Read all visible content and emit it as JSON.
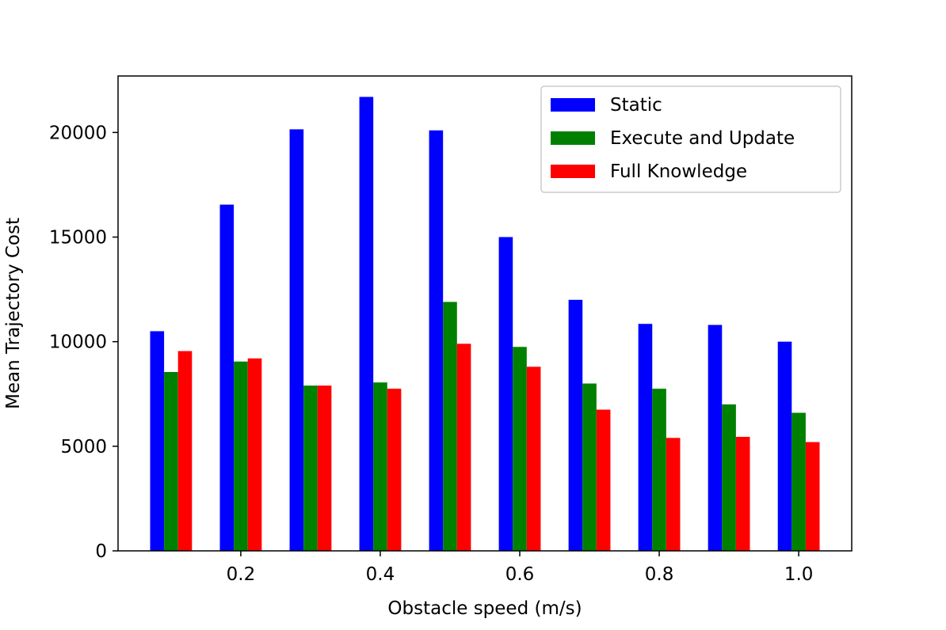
{
  "chart_data": {
    "type": "bar",
    "title": "",
    "xlabel": "Obstacle speed (m/s)",
    "ylabel": "Mean Trajectory Cost",
    "x": [
      0.1,
      0.2,
      0.3,
      0.4,
      0.5,
      0.6,
      0.7,
      0.8,
      0.9,
      1.0
    ],
    "xlim": [
      0.024,
      1.076
    ],
    "ylim": [
      0,
      22700
    ],
    "xticks": [
      0.2,
      0.4,
      0.6,
      0.8,
      1.0
    ],
    "xtick_labels": [
      "0.2",
      "0.4",
      "0.6",
      "0.8",
      "1.0"
    ],
    "yticks": [
      0,
      5000,
      10000,
      15000,
      20000
    ],
    "ytick_labels": [
      "0",
      "5000",
      "10000",
      "15000",
      "20000"
    ],
    "grid": false,
    "legend_position": "top-right",
    "series": [
      {
        "name": "Static",
        "color": "#0000ff",
        "values": [
          10500,
          16550,
          20150,
          21700,
          20100,
          15000,
          12000,
          10850,
          10800,
          10000
        ]
      },
      {
        "name": "Execute and Update",
        "color": "#008000",
        "values": [
          8550,
          9050,
          7900,
          8050,
          11900,
          9750,
          8000,
          7750,
          7000,
          6600
        ]
      },
      {
        "name": "Full Knowledge",
        "color": "#ff0000",
        "values": [
          9550,
          9200,
          7900,
          7750,
          9900,
          8800,
          6750,
          5400,
          5450,
          5200
        ]
      }
    ]
  }
}
